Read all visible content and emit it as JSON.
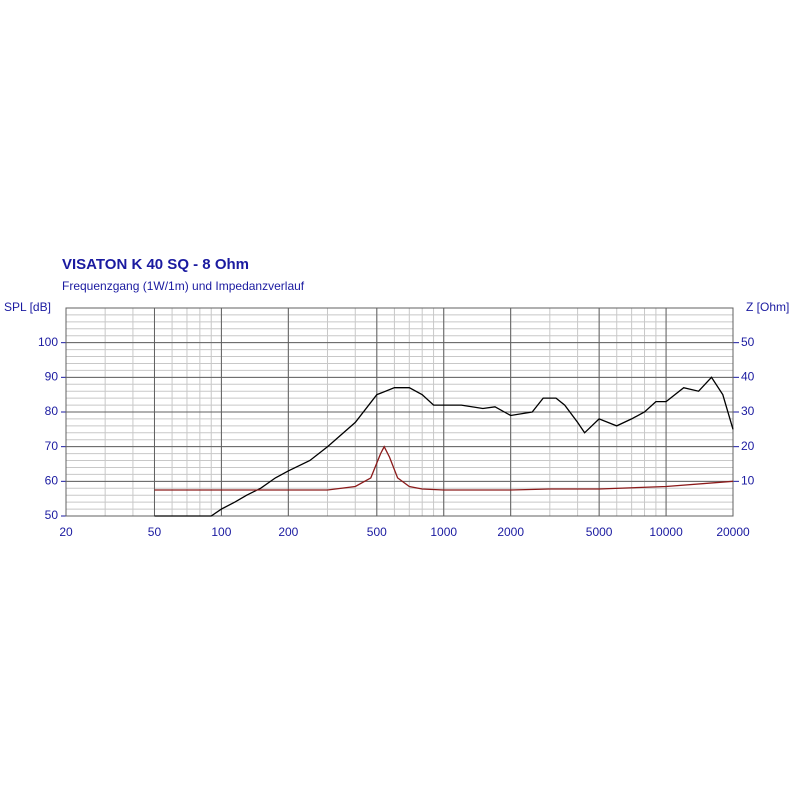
{
  "chart_data": {
    "type": "line",
    "title": "VISATON K 40 SQ - 8 Ohm",
    "subtitle": "Frequenzgang (1W/1m) und Impedanzverlauf",
    "ylabel": "SPL [dB]",
    "y2label": "Z [Ohm]",
    "xscale": "log",
    "xlim": [
      20,
      20000
    ],
    "xticks": [
      20,
      50,
      100,
      200,
      500,
      1000,
      2000,
      5000,
      10000,
      20000
    ],
    "ylim": [
      50,
      110
    ],
    "yticks": [
      50,
      60,
      70,
      80,
      90,
      100
    ],
    "y2lim": [
      0,
      60
    ],
    "y2ticks": [
      10,
      20,
      30,
      40,
      50
    ],
    "grid": true,
    "minor_grid": true,
    "series": [
      {
        "name": "SPL",
        "color": "#000000",
        "x": [
          50,
          90,
          100,
          115,
          130,
          150,
          175,
          200,
          250,
          300,
          400,
          500,
          600,
          700,
          800,
          900,
          1000,
          1200,
          1500,
          1700,
          2000,
          2500,
          2800,
          3200,
          3500,
          4000,
          4300,
          5000,
          6000,
          7000,
          8000,
          9000,
          10000,
          12000,
          14000,
          16000,
          18000,
          20000
        ],
        "values": [
          50,
          50,
          52,
          54,
          56,
          58,
          61,
          63,
          66,
          70,
          77,
          85,
          87,
          87,
          85,
          82,
          82,
          82,
          81,
          81.5,
          79,
          80,
          84,
          84,
          82,
          77,
          74,
          78,
          76,
          78,
          80,
          83,
          83,
          87,
          86,
          90,
          85,
          75
        ]
      },
      {
        "name": "Z",
        "color": "#8b1a1a",
        "axis": "y2",
        "x": [
          50,
          100,
          200,
          300,
          400,
          470,
          520,
          540,
          570,
          620,
          700,
          800,
          1000,
          2000,
          3000,
          5000,
          10000,
          20000
        ],
        "values": [
          7.5,
          7.5,
          7.5,
          7.5,
          8.5,
          11,
          18,
          20,
          17,
          11,
          8.5,
          7.8,
          7.5,
          7.5,
          7.8,
          7.8,
          8.5,
          10
        ]
      }
    ]
  }
}
